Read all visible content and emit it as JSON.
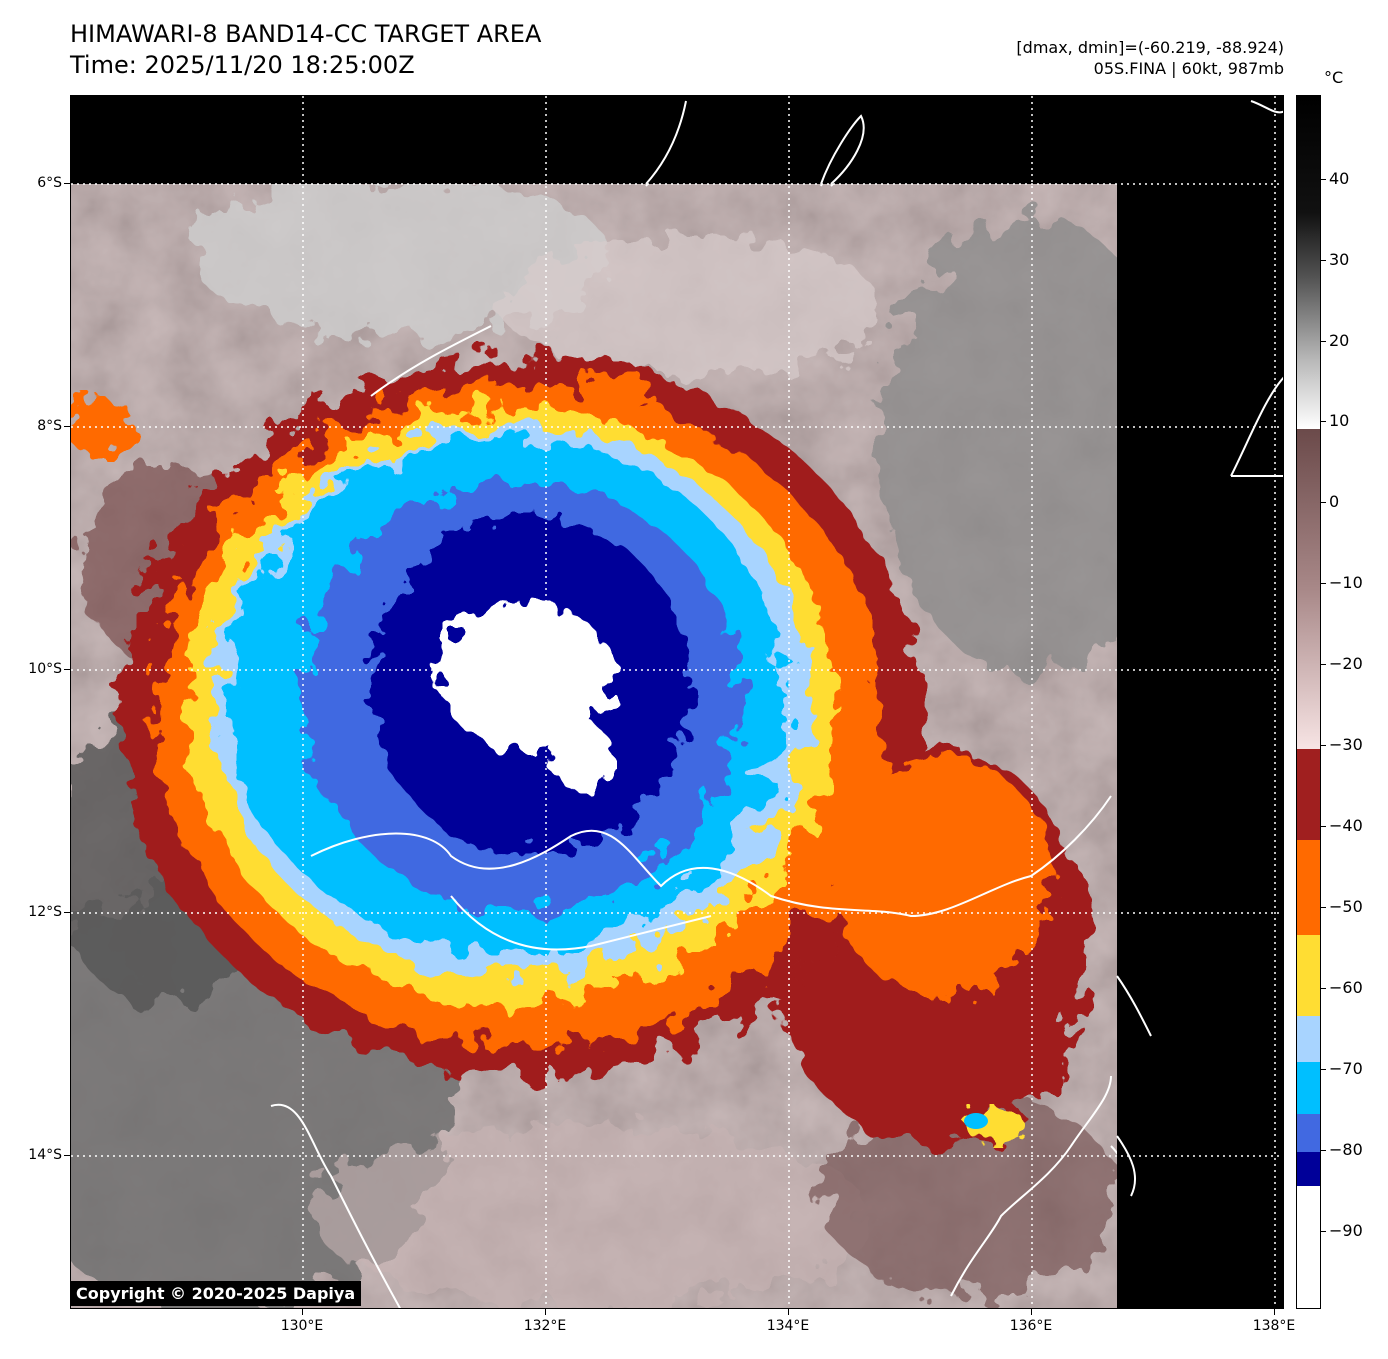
{
  "title": {
    "line1": "HIMAWARI-8 BAND14-CC TARGET AREA",
    "line2": "Time: 2025/11/20 18:25:00Z"
  },
  "info": {
    "range": "[dmax, dmin]=(-60.219, -88.924)",
    "storm": "05S.FINA | 60kt, 987mb"
  },
  "copyright": "Copyright © 2020-2025 Dapiya",
  "lat_labels": [
    "6°S",
    "8°S",
    "10°S",
    "12°S",
    "14°S"
  ],
  "lon_labels": [
    "130°E",
    "132°E",
    "134°E",
    "136°E",
    "138°E"
  ],
  "colorbar": {
    "unit": "°C",
    "ticks": [
      "40",
      "30",
      "20",
      "10",
      "0",
      "−10",
      "−20",
      "−30",
      "−40",
      "−50",
      "−60",
      "−70",
      "−80",
      "−90"
    ],
    "colors": {
      "warm_black": "#000000",
      "gray_mid": "#808080",
      "white": "#ffffff",
      "brown": "#6b4a4a",
      "pink": "#f2d8d8",
      "darkred": "#a01f1f",
      "orange": "#ff6a00",
      "yellow": "#ffdd33",
      "lightblue": "#a8d4ff",
      "cyan": "#00bfff",
      "royalblue": "#4169e1",
      "navy": "#000099",
      "coldwhite": "#ffffff"
    }
  }
}
